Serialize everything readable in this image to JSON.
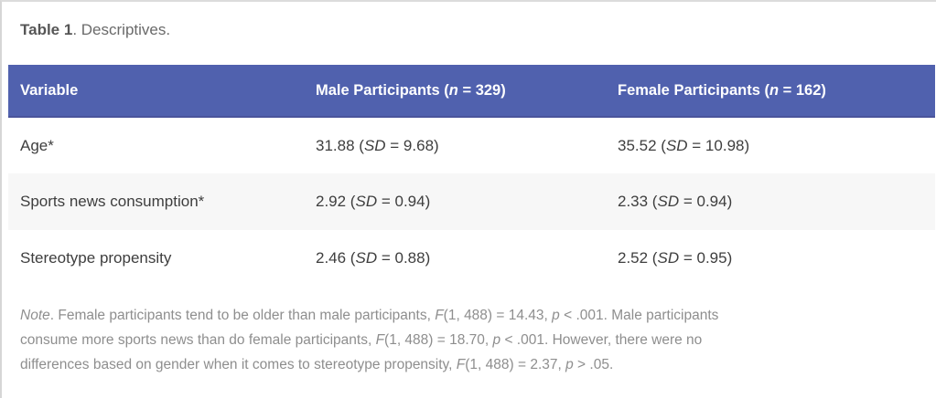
{
  "page": {
    "background_color": "#ffffff",
    "frame_border_color": "#d6d6d6"
  },
  "caption": {
    "text": "Table 1. Descriptives.",
    "segments": [
      {
        "t": "Table 1",
        "b": true
      },
      {
        "t": ". Descriptives."
      }
    ]
  },
  "table": {
    "header_bg_color": "#5061ae",
    "header_text_color": "#ffffff",
    "header_bottom_border_color": "#4a549b",
    "stripe_bg_color": "#f7f7f7",
    "body_text_color": "#3e3e3e",
    "headers": [
      {
        "text": "Variable",
        "segments": [
          {
            "t": "Variable"
          }
        ]
      },
      {
        "text": "Male Participants (n = 329)",
        "segments": [
          {
            "t": "Male Participants ("
          },
          {
            "t": "n",
            "i": true
          },
          {
            "t": " = 329)"
          }
        ]
      },
      {
        "text": "Female Participants (n = 162)",
        "segments": [
          {
            "t": "Female Participants ("
          },
          {
            "t": "n",
            "i": true
          },
          {
            "t": " = 162)"
          }
        ]
      }
    ],
    "rows": [
      {
        "variable": "Age*",
        "male": {
          "text": "31.88 (SD = 9.68)",
          "segments": [
            {
              "t": "31.88 ("
            },
            {
              "t": "SD",
              "i": true
            },
            {
              "t": " = 9.68)"
            }
          ]
        },
        "female": {
          "text": "35.52 (SD = 10.98)",
          "segments": [
            {
              "t": "35.52 ("
            },
            {
              "t": "SD",
              "i": true
            },
            {
              "t": " = 10.98)"
            }
          ]
        }
      },
      {
        "variable": "Sports news consumption*",
        "male": {
          "text": "2.92 (SD = 0.94)",
          "segments": [
            {
              "t": "2.92 ("
            },
            {
              "t": "SD",
              "i": true
            },
            {
              "t": " = 0.94)"
            }
          ]
        },
        "female": {
          "text": "2.33 (SD = 0.94)",
          "segments": [
            {
              "t": "2.33 ("
            },
            {
              "t": "SD",
              "i": true
            },
            {
              "t": " = 0.94)"
            }
          ]
        }
      },
      {
        "variable": "Stereotype propensity",
        "male": {
          "text": "2.46 (SD = 0.88)",
          "segments": [
            {
              "t": "2.46 ("
            },
            {
              "t": "SD",
              "i": true
            },
            {
              "t": " = 0.88)"
            }
          ]
        },
        "female": {
          "text": "2.52 (SD = 0.95)",
          "segments": [
            {
              "t": "2.52 ("
            },
            {
              "t": "SD",
              "i": true
            },
            {
              "t": " = 0.95)"
            }
          ]
        }
      }
    ]
  },
  "note": {
    "text": "Note. Female participants tend to be older than male participants, F(1, 488) = 14.43, p < .001. Male participants consume more sports news than do female participants, F(1, 488) = 18.70, p < .001. However, there were no differences based on gender when it comes to stereotype propensity, F(1, 488) = 2.37, p > .05.",
    "segments": [
      {
        "t": "Note",
        "i": true
      },
      {
        "t": ". Female participants tend to be older than male participants, "
      },
      {
        "t": "F",
        "i": true
      },
      {
        "t": "(1, 488) = 14.43, "
      },
      {
        "t": "p",
        "i": true
      },
      {
        "t": " < .001. Male participants"
      },
      {
        "br": true
      },
      {
        "t": "consume more sports news than do female participants, "
      },
      {
        "t": "F",
        "i": true
      },
      {
        "t": "(1, 488) = 18.70, "
      },
      {
        "t": "p",
        "i": true
      },
      {
        "t": " < .001. However, there were no"
      },
      {
        "br": true
      },
      {
        "t": "differences based on gender when it comes to stereotype propensity, "
      },
      {
        "t": "F",
        "i": true
      },
      {
        "t": "(1, 488) = 2.37, "
      },
      {
        "t": "p",
        "i": true
      },
      {
        "t": " > .05."
      }
    ]
  }
}
